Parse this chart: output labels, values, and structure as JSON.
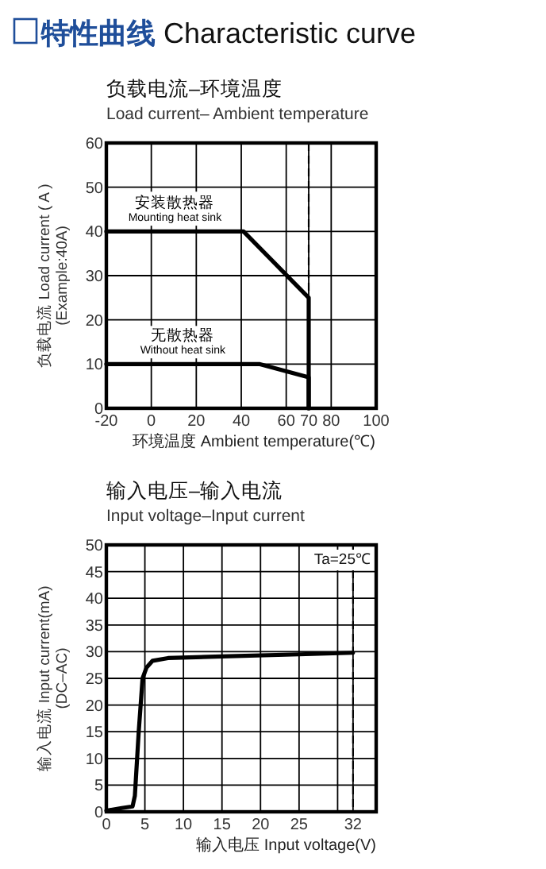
{
  "chart_data": [
    {
      "type": "line",
      "title": "负载电流–环境温度",
      "subtitle": "Load current– Ambient temperature",
      "xlabel": "环境温度 Ambient temperature(℃)",
      "ylabel": "负载电流 Load current ( A )\n(Example:40A)",
      "annotations": [
        "特性曲线 Characteristic curve"
      ],
      "xlim": [
        -20,
        100
      ],
      "xticks": [
        -20,
        0,
        20,
        40,
        60,
        70,
        80,
        100
      ],
      "ylim": [
        0,
        60
      ],
      "yticks": [
        0,
        10,
        20,
        30,
        40,
        50,
        60
      ],
      "grid": true,
      "series": [
        {
          "name": "安装散热器\nMounting heat sink",
          "color": "#000000",
          "x": [
            -20,
            41,
            70,
            70
          ],
          "values": [
            40,
            40,
            25,
            0
          ]
        },
        {
          "name": "无散热器\nWithout heat sink",
          "color": "#000000",
          "x": [
            -20,
            48,
            70,
            70
          ],
          "values": [
            10,
            10,
            7,
            0
          ]
        }
      ],
      "ref_lines": [
        {
          "axis": "x",
          "value": 70,
          "line_style": "dashed",
          "color": "#000000"
        }
      ]
    },
    {
      "type": "line",
      "title": "输入电压–输入电流",
      "subtitle": "Input voltage–Input current",
      "xlabel": "输入电压 Input voltage(V)",
      "ylabel": "输入电流 Input current(mA)\n(DC–AC)",
      "annotations": [
        "Ta=25℃"
      ],
      "xlim": [
        0,
        35
      ],
      "xticks": [
        0,
        5,
        10,
        15,
        20,
        25,
        {
          "value": 30,
          "label": null
        },
        32
      ],
      "ylim": [
        0,
        50
      ],
      "yticks": [
        0,
        5,
        10,
        15,
        20,
        25,
        30,
        35,
        40,
        45,
        50
      ],
      "grid": true,
      "series": [
        {
          "color": "#000000",
          "x": [
            0,
            2,
            3.4,
            3.7,
            4.2,
            4.7,
            5.2,
            6,
            8,
            15,
            25,
            32
          ],
          "values": [
            0.2,
            0.7,
            1,
            3,
            15,
            25,
            27,
            28.3,
            28.8,
            29.1,
            29.5,
            29.8
          ]
        }
      ],
      "ref_lines": [
        {
          "axis": "x",
          "value": 32,
          "line_style": "dashed",
          "color": "#000000"
        }
      ]
    }
  ]
}
